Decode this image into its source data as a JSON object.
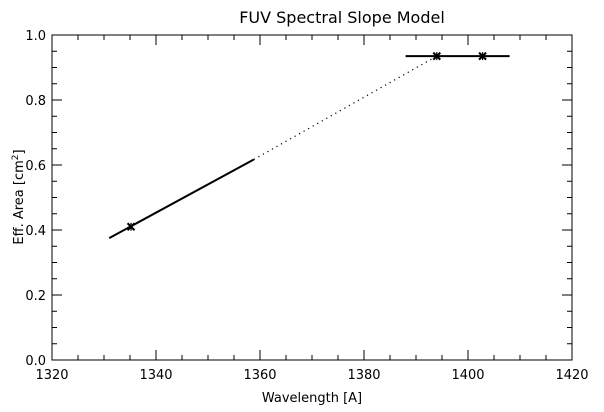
{
  "chart_data": {
    "type": "line",
    "title": "FUV Spectral Slope Model",
    "xlabel": "Wavelength [A]",
    "ylabel": "Eff. Area [cm",
    "ylabel_sup": "2",
    "ylabel_end": "]",
    "xlim": [
      1320,
      1420
    ],
    "ylim": [
      0.0,
      1.0
    ],
    "x_ticks": [
      1320,
      1340,
      1360,
      1380,
      1400,
      1420
    ],
    "x_tick_labels": [
      "1320",
      "1340",
      "1360",
      "1380",
      "1400",
      "1420"
    ],
    "y_ticks": [
      0.0,
      0.2,
      0.4,
      0.6,
      0.8,
      1.0
    ],
    "y_tick_labels": [
      "0.0",
      "0.2",
      "0.4",
      "0.6",
      "0.8",
      "1.0"
    ],
    "x_minor_step": 5,
    "y_minor_step": 0.05,
    "grid": false,
    "series": [
      {
        "style": "solid",
        "x": [
          1331.0,
          1358.8
        ],
        "y": [
          0.375,
          0.617
        ]
      },
      {
        "style": "dotted",
        "x": [
          1358.8,
          1394.0
        ],
        "y": [
          0.617,
          0.935
        ]
      },
      {
        "style": "solid",
        "x": [
          1388.0,
          1408.0
        ],
        "y": [
          0.935,
          0.935
        ]
      }
    ],
    "markers": [
      {
        "x": 1335.2,
        "y": 0.41
      },
      {
        "x": 1394.0,
        "y": 0.935
      },
      {
        "x": 1402.8,
        "y": 0.935
      }
    ]
  }
}
